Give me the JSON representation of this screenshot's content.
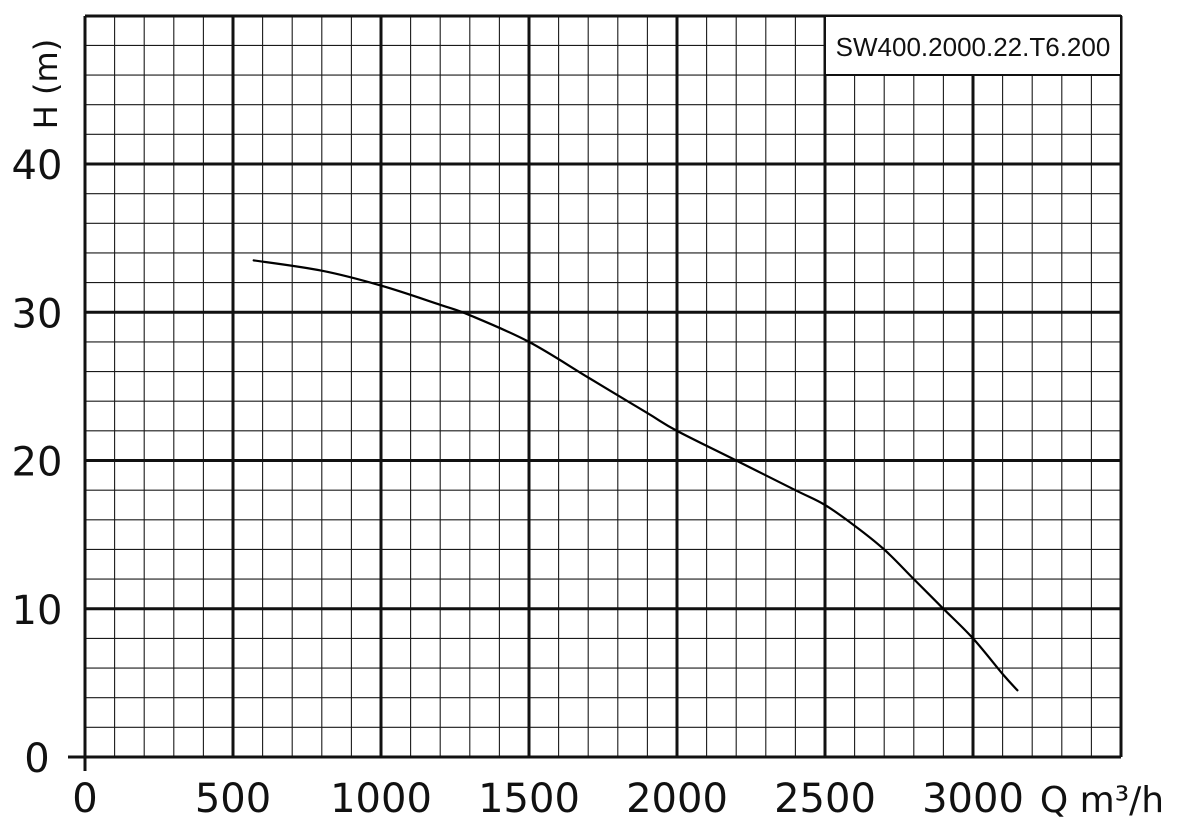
{
  "chart_data": {
    "type": "line",
    "title": "SW400.2000.22.T6.200",
    "xlabel": "Q m³/h",
    "ylabel": "H (m)",
    "xlim": [
      0,
      3500
    ],
    "ylim": [
      0,
      50
    ],
    "grid": true,
    "x_ticks": [
      0,
      500,
      1000,
      1500,
      2000,
      2500,
      3000
    ],
    "y_ticks": [
      0,
      10,
      20,
      30,
      40
    ],
    "series": [
      {
        "points": [
          {
            "x": 570,
            "y": 33.5
          },
          {
            "x": 800,
            "y": 32.8
          },
          {
            "x": 1000,
            "y": 31.8
          },
          {
            "x": 1200,
            "y": 30.5
          },
          {
            "x": 1300,
            "y": 29.8
          },
          {
            "x": 1500,
            "y": 28.0
          },
          {
            "x": 1700,
            "y": 25.6
          },
          {
            "x": 1900,
            "y": 23.2
          },
          {
            "x": 2000,
            "y": 22.0
          },
          {
            "x": 2200,
            "y": 20.0
          },
          {
            "x": 2400,
            "y": 18.0
          },
          {
            "x": 2500,
            "y": 17.0
          },
          {
            "x": 2600,
            "y": 15.6
          },
          {
            "x": 2700,
            "y": 14.0
          },
          {
            "x": 2800,
            "y": 12.0
          },
          {
            "x": 2900,
            "y": 10.0
          },
          {
            "x": 3000,
            "y": 8.0
          },
          {
            "x": 3100,
            "y": 5.6
          },
          {
            "x": 3150,
            "y": 4.5
          }
        ]
      }
    ]
  }
}
